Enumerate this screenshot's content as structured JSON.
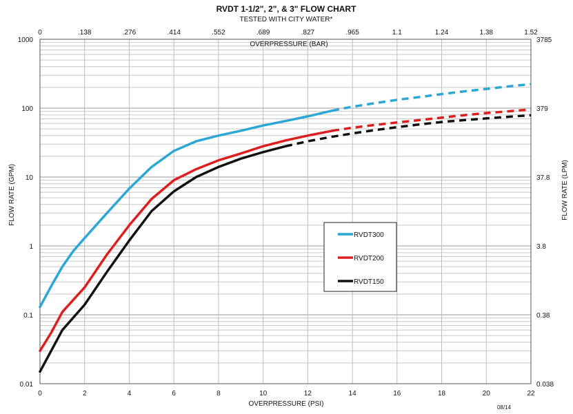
{
  "chart_data": {
    "type": "line",
    "title": "RVDT 1-1/2\", 2\", & 3\" FLOW CHART",
    "subtitle": "TESTED WITH CITY WATER*",
    "xlabel": "OVERPRESSURE (PSI)",
    "x2label": "OVERPRESSURE (BAR)",
    "ylabel": "FLOW RATE (GPM)",
    "y2label": "FLOW RATE (LPM)",
    "xlim": [
      0,
      22
    ],
    "ylim": [
      0.01,
      1000
    ],
    "yscale": "log",
    "x_ticks": [
      "0",
      "2",
      "4",
      "6",
      "8",
      "10",
      "12",
      "14",
      "16",
      "18",
      "20",
      "22"
    ],
    "x2_ticks": [
      "0",
      ".138",
      ".276",
      ".414",
      ".552",
      ".689",
      ".827",
      ".965",
      "1.1",
      "1.24",
      "1.38",
      "1.52"
    ],
    "y_ticks": [
      "1000",
      "100",
      "10",
      "1",
      "0.1",
      "0.01"
    ],
    "y2_ticks": [
      "3785",
      "379",
      "37.8",
      "3.8",
      "0.38",
      "0.038"
    ],
    "footnote": "08/14",
    "legend": {
      "position": "center-right"
    },
    "series": [
      {
        "name": "RVDT300",
        "color": "#2aa7d5",
        "points": [
          [
            0,
            0.13
          ],
          [
            0.5,
            0.26
          ],
          [
            1,
            0.5
          ],
          [
            1.5,
            0.85
          ],
          [
            2,
            1.3
          ],
          [
            3,
            3.0
          ],
          [
            4,
            6.8
          ],
          [
            5,
            14
          ],
          [
            6,
            24
          ],
          [
            7,
            33
          ],
          [
            8,
            40
          ],
          [
            9,
            47
          ],
          [
            10,
            56
          ],
          [
            11,
            65
          ],
          [
            12,
            76
          ],
          [
            13.1,
            92
          ]
        ],
        "dashed_points": [
          [
            13.1,
            92
          ],
          [
            14,
            105
          ],
          [
            15,
            118
          ],
          [
            16,
            132
          ],
          [
            17,
            145
          ],
          [
            18,
            160
          ],
          [
            19,
            175
          ],
          [
            20,
            190
          ],
          [
            21,
            207
          ],
          [
            22,
            223
          ]
        ]
      },
      {
        "name": "RVDT200",
        "color": "#dd1e1e",
        "points": [
          [
            0,
            0.03
          ],
          [
            0.5,
            0.055
          ],
          [
            1,
            0.11
          ],
          [
            2,
            0.25
          ],
          [
            3,
            0.75
          ],
          [
            4,
            2.0
          ],
          [
            5,
            4.8
          ],
          [
            6,
            9.0
          ],
          [
            7,
            13
          ],
          [
            8,
            17.5
          ],
          [
            9,
            22
          ],
          [
            10,
            28
          ],
          [
            11,
            34
          ],
          [
            12,
            40
          ],
          [
            13.1,
            47
          ]
        ],
        "dashed_points": [
          [
            13.1,
            47
          ],
          [
            14,
            52
          ],
          [
            15,
            57
          ],
          [
            16,
            62
          ],
          [
            17,
            67
          ],
          [
            18,
            73
          ],
          [
            19,
            79
          ],
          [
            20,
            85
          ],
          [
            21,
            90
          ],
          [
            22,
            96
          ]
        ]
      },
      {
        "name": "RVDT150",
        "color": "#111111",
        "points": [
          [
            0,
            0.015
          ],
          [
            0.5,
            0.03
          ],
          [
            1,
            0.06
          ],
          [
            2,
            0.14
          ],
          [
            3,
            0.42
          ],
          [
            4,
            1.2
          ],
          [
            5,
            3.2
          ],
          [
            6,
            6.2
          ],
          [
            7,
            10
          ],
          [
            8,
            14
          ],
          [
            9,
            18.5
          ],
          [
            10,
            23
          ],
          [
            11,
            28
          ]
        ],
        "dashed_points": [
          [
            11,
            28
          ],
          [
            12,
            33
          ],
          [
            13,
            38
          ],
          [
            14,
            43
          ],
          [
            15,
            48
          ],
          [
            16,
            53
          ],
          [
            17,
            58
          ],
          [
            18,
            63
          ],
          [
            19,
            67
          ],
          [
            20,
            71
          ],
          [
            21,
            75
          ],
          [
            22,
            79
          ]
        ]
      }
    ]
  }
}
